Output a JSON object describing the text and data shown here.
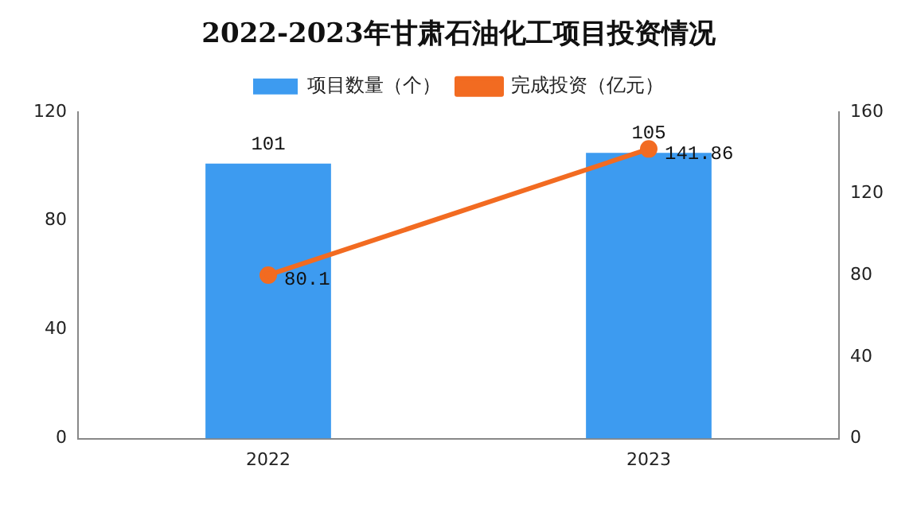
{
  "chart_data": {
    "type": "bar",
    "title": "2022-2023年甘肃石油化工项目投资情况",
    "categories": [
      "2022",
      "2023"
    ],
    "series": [
      {
        "name": "项目数量（个）",
        "color": "#3d9bf0",
        "values": [
          101,
          105
        ]
      },
      {
        "name": "完成投资（亿元）",
        "type": "line",
        "axis": "y2",
        "color": "#f26b21",
        "marker": "circle",
        "values": [
          80.1,
          141.86
        ]
      }
    ],
    "ylim": [
      0,
      120
    ],
    "yticks": [
      0,
      40,
      80,
      120
    ],
    "y2lim": [
      0,
      160
    ],
    "y2ticks": [
      0,
      40,
      80,
      120,
      160
    ],
    "data_labels": true,
    "legend": "top",
    "grid": false
  }
}
